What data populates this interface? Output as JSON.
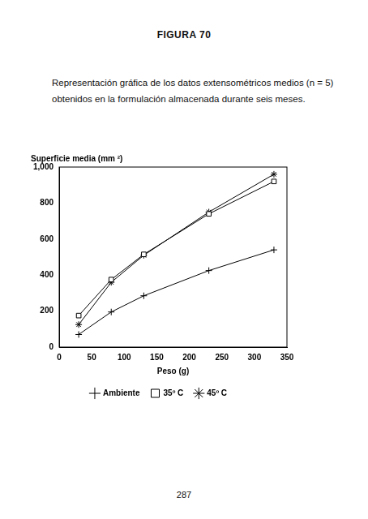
{
  "heading": "FIGURA 70",
  "caption": "Representación gráfica de los datos extensométricos medios (n = 5) obtenidos en la formulación almacenada durante seis meses.",
  "page_number": "287",
  "chart_data": {
    "type": "line",
    "ylabel": "Superficie media (mm ²)",
    "xlabel": "Peso (g)",
    "xlim": [
      0,
      350
    ],
    "xticks": [
      0,
      50,
      100,
      150,
      200,
      250,
      300,
      350
    ],
    "ylim": [
      0,
      1000
    ],
    "yticks": [
      0,
      200,
      400,
      600,
      800,
      1000
    ],
    "grid": false,
    "legend": "bottom",
    "x": [
      30,
      80,
      130,
      230,
      330
    ],
    "series": [
      {
        "name": "Ambiente",
        "color": "#000000",
        "marker": "plus",
        "values": [
          70,
          195,
          285,
          425,
          540
        ]
      },
      {
        "name": "35º C",
        "color": "#000000",
        "marker": "square",
        "values": [
          175,
          375,
          515,
          740,
          920
        ]
      },
      {
        "name": "45º C",
        "color": "#000000",
        "marker": "star",
        "values": [
          125,
          360,
          510,
          750,
          960
        ]
      }
    ]
  }
}
